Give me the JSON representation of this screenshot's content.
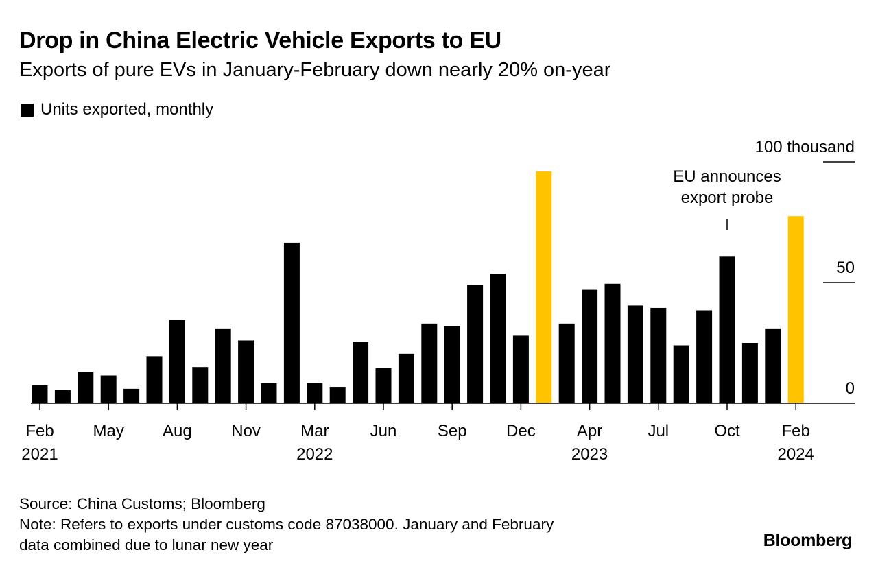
{
  "header": {
    "title": "Drop in China Electric Vehicle Exports to EU",
    "subtitle": "Exports of pure EVs in January-February down nearly 20% on-year"
  },
  "legend": {
    "label": "Units exported, monthly",
    "color": "#000000"
  },
  "colors": {
    "bar": "#000000",
    "highlight": "#FFC300"
  },
  "chart_data": {
    "type": "bar",
    "title": "Drop in China Electric Vehicle Exports to EU",
    "ylabel": "Units exported, monthly (thousand)",
    "ylim": [
      0,
      100
    ],
    "y_ticks": [
      {
        "value": 0,
        "label": "0"
      },
      {
        "value": 50,
        "label": "50"
      },
      {
        "value": 100,
        "label": "100 thousand"
      }
    ],
    "categories": [
      "Feb 2021",
      "Mar 2021",
      "Apr 2021",
      "May 2021",
      "Jun 2021",
      "Jul 2021",
      "Aug 2021",
      "Sep 2021",
      "Oct 2021",
      "Nov 2021",
      "Dec 2021",
      "Jan-Feb 2022",
      "Mar 2022",
      "Apr 2022",
      "May 2022",
      "Jun 2022",
      "Jul 2022",
      "Aug 2022",
      "Sep 2022",
      "Oct 2022",
      "Nov 2022",
      "Dec 2022",
      "Jan-Feb 2023",
      "Mar 2023",
      "Apr 2023",
      "May 2023",
      "Jun 2023",
      "Jul 2023",
      "Aug 2023",
      "Sep 2023",
      "Oct 2023",
      "Nov 2023",
      "Dec 2023",
      "Jan-Feb 2024"
    ],
    "values": [
      7.5,
      5.5,
      13,
      11.5,
      6,
      19.5,
      34.5,
      15,
      31,
      26,
      8.3,
      66.5,
      8.5,
      6.8,
      25.5,
      14.5,
      20.5,
      33,
      32,
      49,
      53.5,
      28,
      96,
      33,
      47,
      49.5,
      40.5,
      39.5,
      24,
      38.5,
      61,
      25,
      31,
      77.5
    ],
    "highlight": [
      false,
      false,
      false,
      false,
      false,
      false,
      false,
      false,
      false,
      false,
      false,
      false,
      false,
      false,
      false,
      false,
      false,
      false,
      false,
      false,
      false,
      false,
      true,
      false,
      false,
      false,
      false,
      false,
      false,
      false,
      false,
      false,
      false,
      true
    ],
    "x_ticks": [
      {
        "index": 0,
        "month": "Feb",
        "year": "2021"
      },
      {
        "index": 3,
        "month": "May",
        "year": ""
      },
      {
        "index": 6,
        "month": "Aug",
        "year": ""
      },
      {
        "index": 9,
        "month": "Nov",
        "year": ""
      },
      {
        "index": 12,
        "month": "Mar",
        "year": "2022"
      },
      {
        "index": 15,
        "month": "Jun",
        "year": ""
      },
      {
        "index": 18,
        "month": "Sep",
        "year": ""
      },
      {
        "index": 21,
        "month": "Dec",
        "year": ""
      },
      {
        "index": 24,
        "month": "Apr",
        "year": "2023"
      },
      {
        "index": 27,
        "month": "Jul",
        "year": ""
      },
      {
        "index": 30,
        "month": "Oct",
        "year": ""
      },
      {
        "index": 33,
        "month": "Feb",
        "year": "2024"
      }
    ],
    "annotations": [
      {
        "index": 30,
        "lines": [
          "EU announces",
          "export probe"
        ]
      }
    ]
  },
  "footer": {
    "source": "Source: China Customs; Bloomberg",
    "note_line1": "Note: Refers to exports under customs code 87038000. January and February",
    "note_line2": "data combined due to lunar new year"
  },
  "brand": "Bloomberg"
}
